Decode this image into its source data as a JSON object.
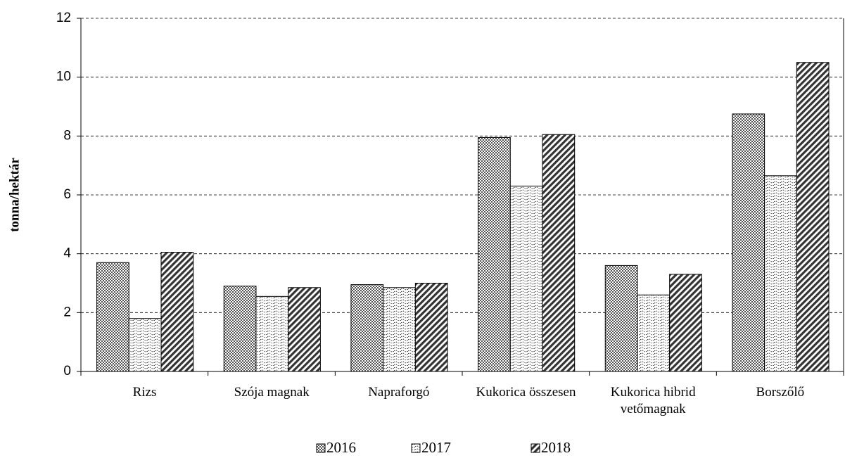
{
  "chart_data": {
    "type": "bar",
    "ylabel": "tonna/hektár",
    "categories": [
      "Rizs",
      "Szója magnak",
      "Napraforgó",
      "Kukorica összesen",
      "Kukorica hibrid vetőmagnak",
      "Borszőlő"
    ],
    "series": [
      {
        "name": "2016",
        "color": "#555555",
        "values": [
          3.7,
          2.9,
          2.95,
          7.95,
          3.6,
          8.75
        ]
      },
      {
        "name": "2017",
        "color": "#ffffff",
        "values": [
          1.8,
          2.55,
          2.85,
          6.3,
          2.6,
          6.65
        ]
      },
      {
        "name": "2018",
        "color": "#333333",
        "values": [
          4.05,
          2.85,
          3.0,
          8.05,
          3.3,
          10.5
        ]
      }
    ],
    "ylim": [
      0,
      12
    ],
    "yticks": [
      0,
      2,
      4,
      6,
      8,
      10,
      12
    ],
    "grid": true,
    "legend": "bottom"
  }
}
